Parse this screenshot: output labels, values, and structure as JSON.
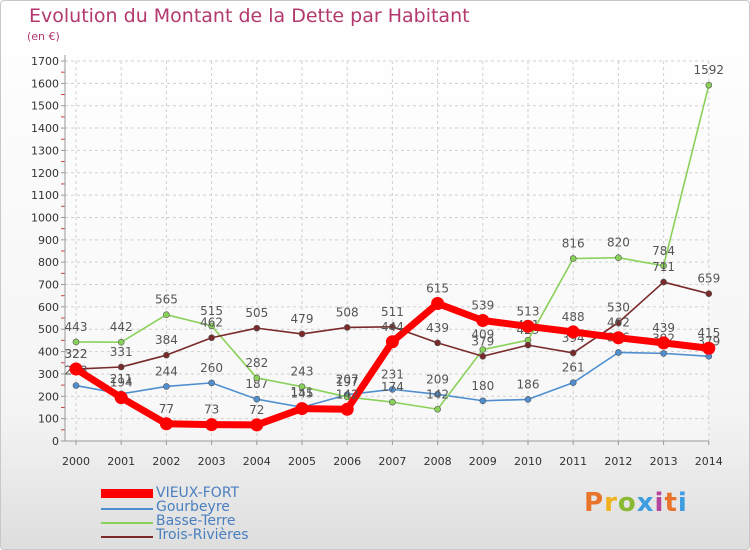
{
  "header": {
    "title": "Evolution du Montant de la Dette par Habitant",
    "subtitle": "(en €)"
  },
  "logo": {
    "text": "Proxiti",
    "colors": [
      "#e8742a",
      "#f1b11c",
      "#8ab832",
      "#3d9de0",
      "#b6449b",
      "#e8742a",
      "#3d9de0"
    ]
  },
  "chart_data": {
    "type": "line",
    "ylim": [
      0,
      1700
    ],
    "yticks": [
      0,
      100,
      200,
      300,
      400,
      500,
      600,
      700,
      800,
      900,
      1000,
      1100,
      1200,
      1300,
      1400,
      1500,
      1600,
      1700
    ],
    "x": [
      "2000",
      "2001",
      "2002",
      "2003",
      "2004",
      "2005",
      "2006",
      "2007",
      "2008",
      "2009",
      "2010",
      "2011",
      "2012",
      "2013",
      "2014"
    ],
    "grid": true,
    "legend_position": "bottom-left",
    "series": [
      {
        "name": "Gourbeyre",
        "color": "#4f8fd0",
        "values": [
          248,
          211,
          244,
          260,
          187,
          151,
          207,
          231,
          209,
          180,
          186,
          261,
          396,
          392,
          379
        ],
        "labels": [
          "248",
          "211",
          "244",
          "260",
          "187",
          "151",
          "207",
          "231",
          "209",
          "180",
          "186",
          "261",
          "396",
          "392",
          "379"
        ]
      },
      {
        "name": "Basse-Terre",
        "color": "#8ad15a",
        "values": [
          443,
          442,
          565,
          515,
          282,
          243,
          197,
          174,
          142,
          409,
          451,
          816,
          820,
          784,
          1592
        ],
        "labels": [
          "443",
          "442",
          "565",
          "515",
          "282",
          "243",
          "197",
          "174",
          "142",
          "409",
          "451",
          "816",
          "820",
          "784",
          "1592"
        ]
      },
      {
        "name": "Trois-Rivières",
        "color": "#7a2a2a",
        "values": [
          322,
          331,
          384,
          462,
          505,
          479,
          508,
          511,
          439,
          379,
          429,
          394,
          530,
          711,
          659
        ],
        "labels": [
          "322",
          "331",
          "384",
          "462",
          "505",
          "479",
          "508",
          "511",
          "439",
          "379",
          "429",
          "394",
          "530",
          "711",
          "659"
        ]
      },
      {
        "name": "VIEUX-FORT",
        "color": "#ff0000",
        "values": [
          322,
          194,
          77,
          73,
          72,
          145,
          142,
          444,
          615,
          539,
          513,
          488,
          462,
          439,
          415
        ],
        "labels": [
          "322",
          "194",
          "77",
          "73",
          "72",
          "145",
          "142",
          "444",
          "615",
          "539",
          "513",
          "488",
          "462",
          "439",
          "415"
        ]
      }
    ],
    "legend": [
      "VIEUX-FORT",
      "Gourbeyre",
      "Basse-Terre",
      "Trois-Rivières"
    ]
  }
}
